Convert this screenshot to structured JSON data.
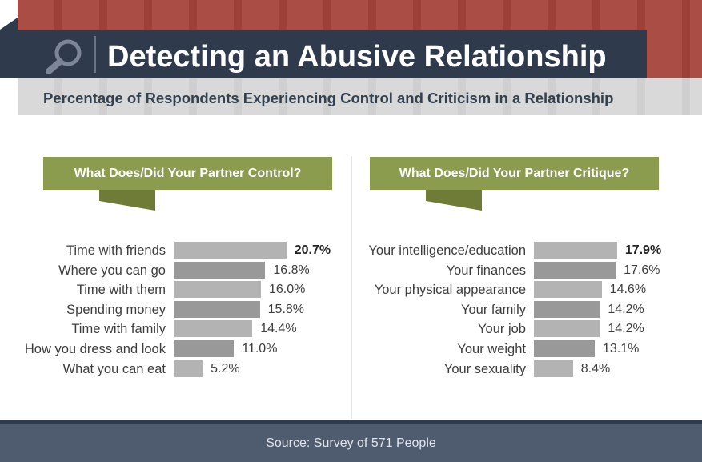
{
  "header": {
    "title": "Detecting an Abusive Relationship",
    "subtitle": "Percentage of Respondents Experiencing Control and Criticism in a Relationship",
    "icon": "magnifying-glass-icon"
  },
  "footer": {
    "source": "Source: Survey of 571 People"
  },
  "colors": {
    "title_band": "#2f3a4d",
    "stripes": "#a94d45",
    "panel_header": "#8c9c4f",
    "bar_light": "#b3b3b3",
    "bar_dark": "#999999",
    "footer": "#4f5b6e"
  },
  "chart_data": [
    {
      "type": "bar",
      "orientation": "horizontal",
      "title": "What Does/Did Your Partner Control?",
      "categories": [
        "Time with friends",
        "Where you can go",
        "Time with them",
        "Spending money",
        "Time with family",
        "How you dress and look",
        "What you can eat"
      ],
      "values": [
        20.7,
        16.8,
        16.0,
        15.8,
        14.4,
        11.0,
        5.2
      ],
      "labels": [
        "20.7%",
        "16.8%",
        "16.0%",
        "15.8%",
        "14.4%",
        "11.0%",
        "5.2%"
      ],
      "unit": "%"
    },
    {
      "type": "bar",
      "orientation": "horizontal",
      "title": "What Does/Did Your Partner Critique?",
      "categories": [
        "Your intelligence/education",
        "Your finances",
        "Your physical appearance",
        "Your family",
        "Your job",
        "Your weight",
        "Your sexuality"
      ],
      "values": [
        17.9,
        17.6,
        14.6,
        14.2,
        14.2,
        13.1,
        8.4
      ],
      "labels": [
        "17.9%",
        "17.6%",
        "14.6%",
        "14.2%",
        "14.2%",
        "13.1%",
        "8.4%"
      ],
      "unit": "%"
    }
  ]
}
